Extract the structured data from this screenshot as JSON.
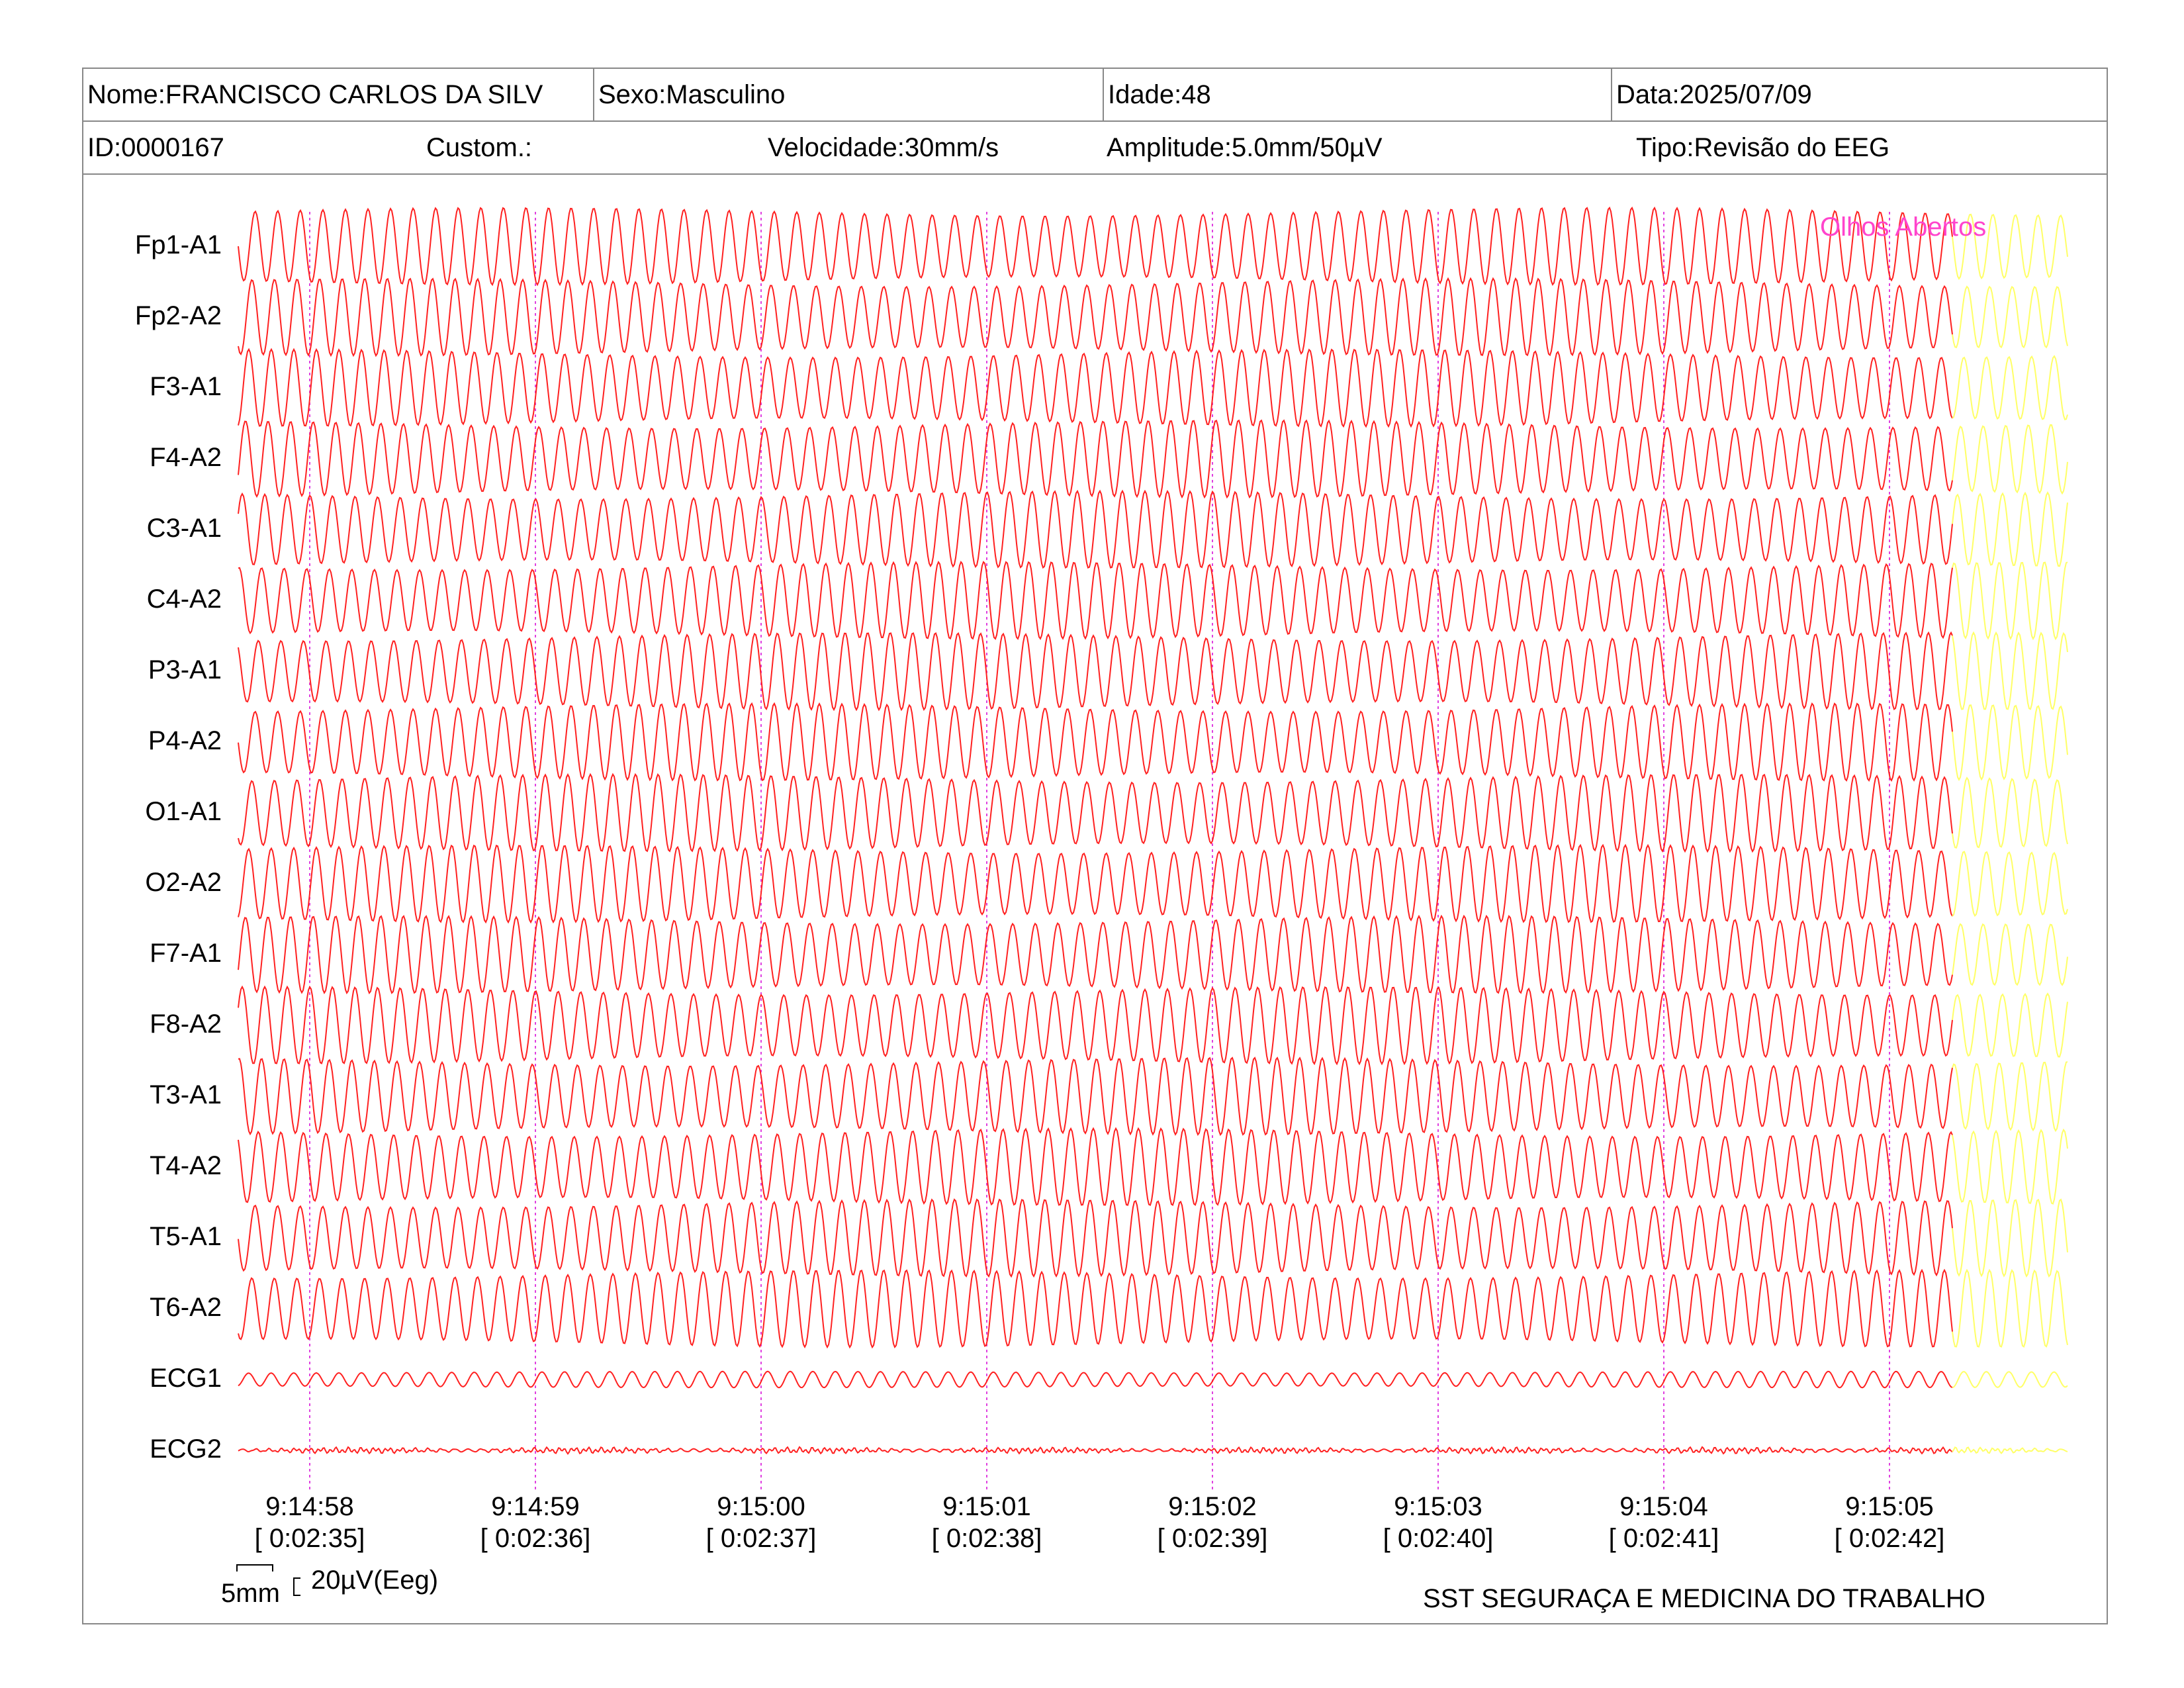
{
  "header": {
    "nome": "Nome:FRANCISCO CARLOS DA SILV",
    "sexo": "Sexo:Masculino",
    "idade": "Idade:48",
    "data": "Data:2025/07/09",
    "id": "ID:0000167",
    "custom": "Custom.:",
    "velocidade": "Velocidade:30mm/s",
    "amplitude": "Amplitude:5.0mm/50µV",
    "tipo": "Tipo:Revisão do EEG"
  },
  "annotation": "Olhos Abertos",
  "colors": {
    "trace": "#ff2020",
    "trace_tail": "#ffff66",
    "marker": "#e040e0",
    "annotation": "#ff44cc",
    "border": "#888888"
  },
  "chart_data": {
    "type": "line",
    "channels": [
      "Fp1-A1",
      "Fp2-A2",
      "F3-A1",
      "F4-A2",
      "C3-A1",
      "C4-A2",
      "P3-A1",
      "P4-A2",
      "O1-A1",
      "O2-A2",
      "F7-A1",
      "F8-A2",
      "T3-A1",
      "T4-A2",
      "T5-A1",
      "T6-A2",
      "ECG1",
      "ECG2"
    ],
    "time_marks": [
      {
        "clock": "9:14:58",
        "elapsed": "[ 0:02:35]"
      },
      {
        "clock": "9:14:59",
        "elapsed": "[ 0:02:36]"
      },
      {
        "clock": "9:15:00",
        "elapsed": "[ 0:02:37]"
      },
      {
        "clock": "9:15:01",
        "elapsed": "[ 0:02:38]"
      },
      {
        "clock": "9:15:02",
        "elapsed": "[ 0:02:39]"
      },
      {
        "clock": "9:15:03",
        "elapsed": "[ 0:02:40]"
      },
      {
        "clock": "9:15:04",
        "elapsed": "[ 0:02:41]"
      },
      {
        "clock": "9:15:05",
        "elapsed": "[ 0:02:42]"
      }
    ],
    "speed": "30mm/s",
    "amplitude": "5.0mm/50µV",
    "eeg_frequency_hz": 10,
    "ecg1_frequency_hz": 10
  },
  "calibration": {
    "time_label": "5mm",
    "amp_label": "20µV(Eeg)"
  },
  "footer": {
    "company": "SST SEGURAÇA E MEDICINA DO TRABALHO"
  }
}
